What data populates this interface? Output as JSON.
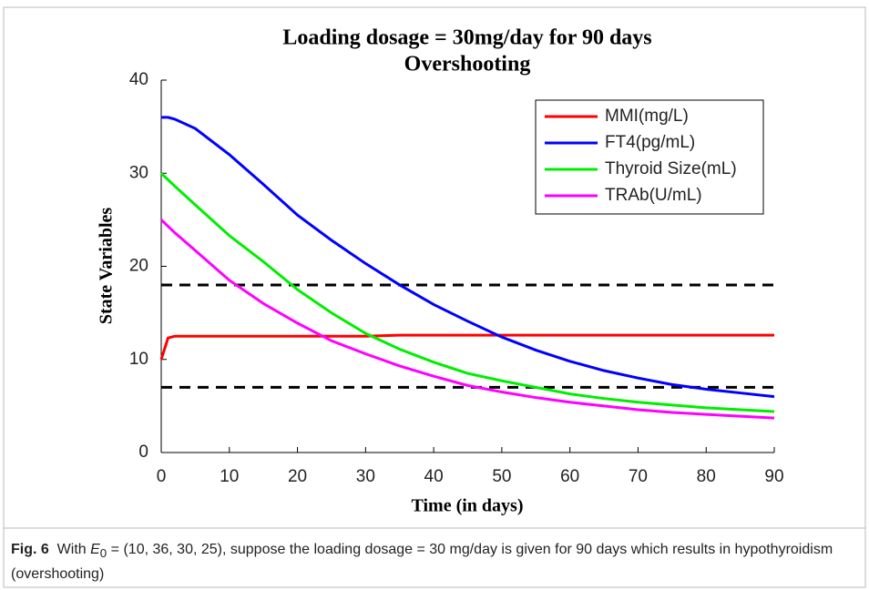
{
  "chart_data": {
    "type": "line",
    "title": [
      "Loading dosage = 30mg/day for 90 days",
      "Overshooting"
    ],
    "x_label": "Time (in days)",
    "y_label": "State Variables",
    "x": [
      0,
      1,
      2,
      5,
      10,
      15,
      20,
      25,
      30,
      35,
      40,
      45,
      50,
      55,
      60,
      65,
      70,
      75,
      80,
      85,
      90
    ],
    "series": [
      {
        "name": "MMI(mg/L)",
        "color": "#ff0000",
        "values": [
          10,
          12.3,
          12.5,
          12.5,
          12.5,
          12.5,
          12.5,
          12.5,
          12.5,
          12.6,
          12.6,
          12.6,
          12.6,
          12.6,
          12.6,
          12.6,
          12.6,
          12.6,
          12.6,
          12.6,
          12.6
        ]
      },
      {
        "name": "FT4(pg/mL)",
        "color": "#0000ff",
        "values": [
          36,
          36,
          35.8,
          34.8,
          32,
          28.8,
          25.5,
          22.8,
          20.3,
          18,
          15.9,
          14.1,
          12.4,
          11,
          9.8,
          8.8,
          8,
          7.3,
          6.8,
          6.4,
          6
        ]
      },
      {
        "name": "Thyroid Size(mL)",
        "color": "#00ee00",
        "values": [
          30,
          29.3,
          28.6,
          26.6,
          23.3,
          20.5,
          17.5,
          15,
          12.8,
          11.1,
          9.7,
          8.5,
          7.7,
          7,
          6.3,
          5.8,
          5.4,
          5.1,
          4.8,
          4.6,
          4.4
        ]
      },
      {
        "name": "TRAb(U/mL)",
        "color": "#ff00ff",
        "values": [
          25,
          24.3,
          23.6,
          21.7,
          18.5,
          16,
          13.9,
          12,
          10.6,
          9.3,
          8.2,
          7.2,
          6.5,
          5.9,
          5.4,
          5,
          4.6,
          4.3,
          4.1,
          3.9,
          3.7
        ]
      }
    ],
    "reference_lines": [
      18,
      7
    ],
    "reference_color": "#000000",
    "xlim": [
      0,
      90
    ],
    "xticks": [
      0,
      10,
      20,
      30,
      40,
      50,
      60,
      70,
      80,
      90
    ],
    "ylim": [
      0,
      40
    ],
    "yticks": [
      0,
      10,
      20,
      30,
      40
    ],
    "legend": "upper right"
  },
  "caption": {
    "label": "Fig. 6",
    "lead": "With",
    "var": "E",
    "sub": "0",
    "text": "= (10, 36, 30, 25), suppose the loading dosage = 30 mg/day is given for 90 days which results in hypothyroidism (overshooting)"
  }
}
